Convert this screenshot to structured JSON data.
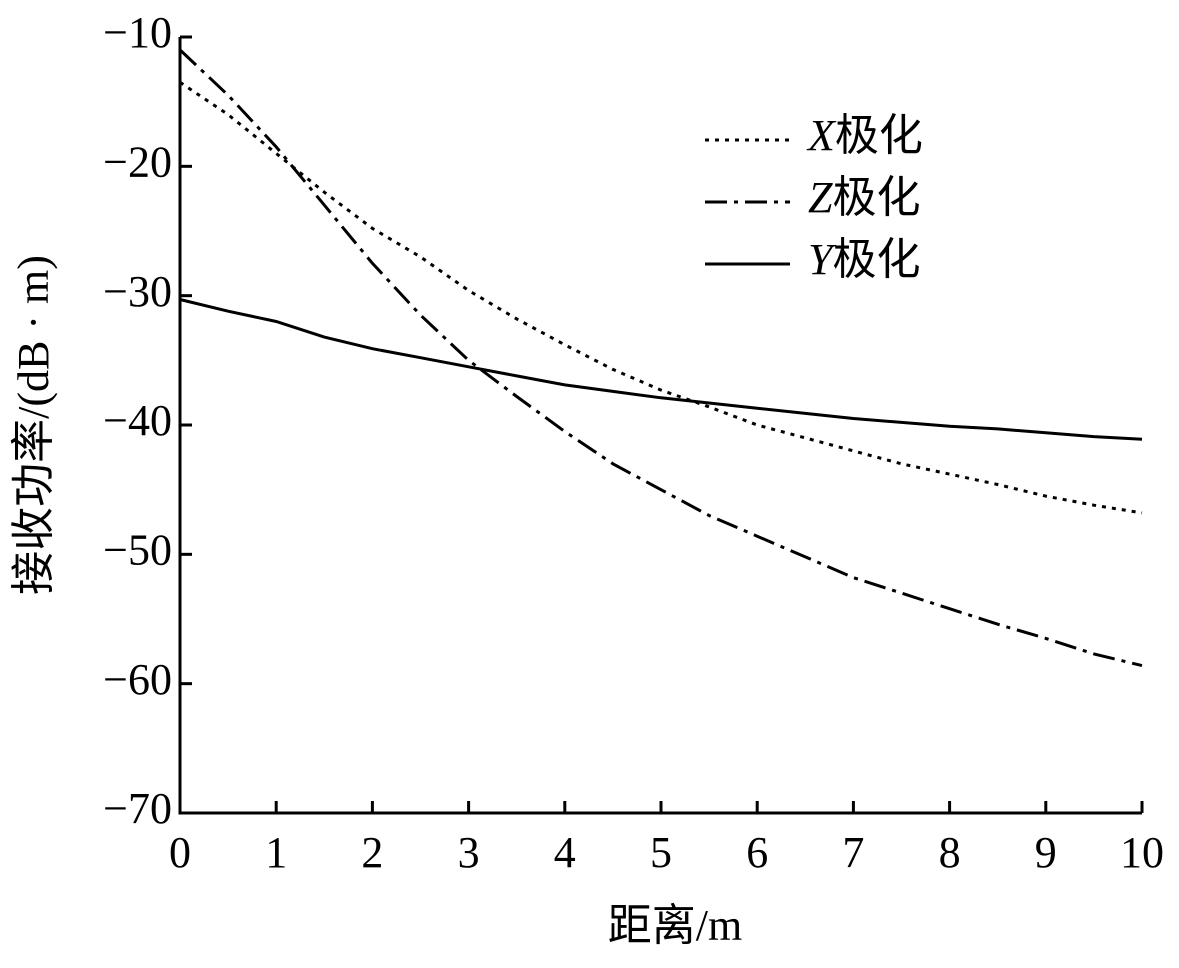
{
  "chart_data": {
    "type": "line",
    "x_label": "距离/m",
    "y_label": "接收功率/(dB · m)",
    "xlim": [
      0,
      10
    ],
    "ylim": [
      -70,
      -10
    ],
    "xticks": [
      0,
      1,
      2,
      3,
      4,
      5,
      6,
      7,
      8,
      9,
      10
    ],
    "yticks": [
      {
        "value": -70,
        "label": "−70"
      },
      {
        "value": -60,
        "label": "−60"
      },
      {
        "value": -50,
        "label": "−50"
      },
      {
        "value": -40,
        "label": "−40"
      },
      {
        "value": -30,
        "label": "−30"
      },
      {
        "value": -20,
        "label": "−20"
      },
      {
        "value": -10,
        "label": "−10"
      }
    ],
    "grid": false,
    "legend": "upper right",
    "x": [
      0,
      0.5,
      1,
      1.5,
      2,
      2.5,
      3,
      3.5,
      4,
      4.5,
      5,
      5.5,
      6,
      6.5,
      7,
      7.5,
      8,
      8.5,
      9,
      9.5,
      10
    ],
    "series": [
      {
        "name": "X极化",
        "color": "#000000",
        "linestyle": "dotted",
        "values": [
          -13.5,
          -16,
          -19,
          -22,
          -24.8,
          -27,
          -29.6,
          -31.8,
          -33.8,
          -35.7,
          -37.3,
          -38.6,
          -40,
          -41,
          -42,
          -43,
          -43.8,
          -44.6,
          -45.5,
          -46.2,
          -46.8
        ]
      },
      {
        "name": "Z极化",
        "color": "#000000",
        "linestyle": "dashdot",
        "values": [
          -11,
          -14.5,
          -18.5,
          -23,
          -27.5,
          -31.5,
          -35,
          -37.8,
          -40.5,
          -43,
          -45,
          -47,
          -48.6,
          -50.2,
          -51.8,
          -53,
          -54.2,
          -55.4,
          -56.5,
          -57.7,
          -58.6
        ]
      },
      {
        "name": "Y极化",
        "color": "#000000",
        "linestyle": "solid",
        "values": [
          -30.3,
          -31.2,
          -32,
          -33.2,
          -34.1,
          -34.8,
          -35.5,
          -36.2,
          -36.9,
          -37.4,
          -37.9,
          -38.3,
          -38.7,
          -39.1,
          -39.5,
          -39.8,
          -40.1,
          -40.3,
          -40.6,
          -40.9,
          -41.1
        ]
      }
    ]
  }
}
